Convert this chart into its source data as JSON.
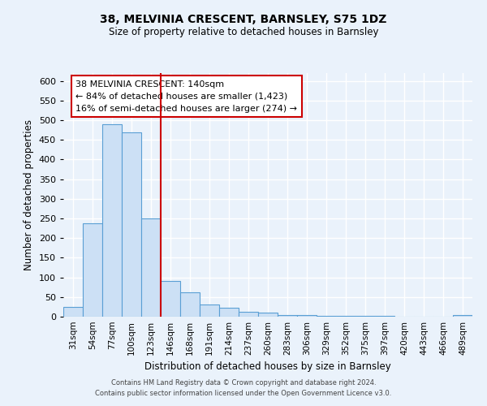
{
  "title": "38, MELVINIA CRESCENT, BARNSLEY, S75 1DZ",
  "subtitle": "Size of property relative to detached houses in Barnsley",
  "xlabel": "Distribution of detached houses by size in Barnsley",
  "ylabel": "Number of detached properties",
  "bin_labels": [
    "31sqm",
    "54sqm",
    "77sqm",
    "100sqm",
    "123sqm",
    "146sqm",
    "168sqm",
    "191sqm",
    "214sqm",
    "237sqm",
    "260sqm",
    "283sqm",
    "306sqm",
    "329sqm",
    "352sqm",
    "375sqm",
    "397sqm",
    "420sqm",
    "443sqm",
    "466sqm",
    "489sqm"
  ],
  "bar_heights": [
    25,
    237,
    490,
    470,
    250,
    90,
    63,
    32,
    22,
    13,
    10,
    5,
    5,
    3,
    3,
    2,
    2,
    1,
    0,
    0,
    5
  ],
  "bar_color": "#cce0f5",
  "bar_edge_color": "#5a9fd4",
  "vline_x": 5,
  "vline_color": "#cc0000",
  "annotation_title": "38 MELVINIA CRESCENT: 140sqm",
  "annotation_line1": "← 84% of detached houses are smaller (1,423)",
  "annotation_line2": "16% of semi-detached houses are larger (274) →",
  "annotation_box_color": "#ffffff",
  "annotation_box_edge": "#cc0000",
  "ylim": [
    0,
    620
  ],
  "yticks": [
    0,
    50,
    100,
    150,
    200,
    250,
    300,
    350,
    400,
    450,
    500,
    550,
    600
  ],
  "footer1": "Contains HM Land Registry data © Crown copyright and database right 2024.",
  "footer2": "Contains public sector information licensed under the Open Government Licence v3.0.",
  "bg_color": "#eaf2fb",
  "grid_color": "#ffffff"
}
